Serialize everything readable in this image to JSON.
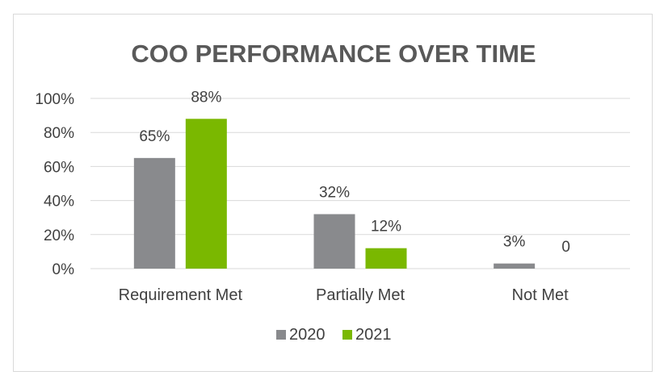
{
  "chart_data": {
    "type": "bar",
    "title": "COO PERFORMANCE OVER TIME",
    "categories": [
      "Requirement Met",
      "Partially Met",
      "Not Met"
    ],
    "series": [
      {
        "name": "2020",
        "values": [
          65,
          32,
          3
        ],
        "labels": [
          "65%",
          "32%",
          "3%"
        ],
        "color": "#898A8D"
      },
      {
        "name": "2021",
        "values": [
          88,
          12,
          0
        ],
        "labels": [
          "88%",
          "12%",
          "0"
        ],
        "color": "#7AB800"
      }
    ],
    "yticks": [
      "0%",
      "20%",
      "40%",
      "60%",
      "80%",
      "100%"
    ],
    "ylim": [
      0,
      100
    ],
    "grid": true,
    "legend": "bottom",
    "gridColor": "#d9d9d9"
  }
}
